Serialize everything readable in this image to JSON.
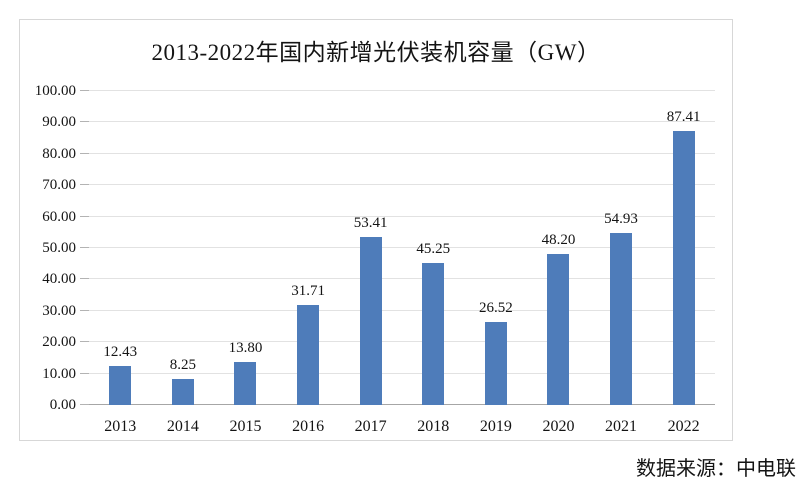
{
  "source_note": "数据来源：中电联",
  "colors": {
    "bar": "#4e7cba",
    "gridline": "#e2e2e2",
    "axis_line": "#a6a6a6",
    "frame_border": "#d7d7d7",
    "text": "#141414",
    "background": "#ffffff"
  },
  "chart_data": {
    "type": "bar",
    "title": "2013-2022年国内新增光伏装机容量（GW）",
    "categories": [
      "2013",
      "2014",
      "2015",
      "2016",
      "2017",
      "2018",
      "2019",
      "2020",
      "2021",
      "2022"
    ],
    "values": [
      12.43,
      8.25,
      13.8,
      31.71,
      53.41,
      45.25,
      26.52,
      48.2,
      54.93,
      87.41
    ],
    "data_labels": [
      "12.43",
      "8.25",
      "13.80",
      "31.71",
      "53.41",
      "45.25",
      "26.52",
      "48.20",
      "54.93",
      "87.41"
    ],
    "xlabel": "",
    "ylabel": "",
    "ylim": [
      0,
      100
    ],
    "y_tick_step": 10,
    "y_tick_labels": [
      "0.00",
      "10.00",
      "20.00",
      "30.00",
      "40.00",
      "50.00",
      "60.00",
      "70.00",
      "80.00",
      "90.00",
      "100.00"
    ],
    "grid": true,
    "legend": "none",
    "bar_color": "#4e7cba",
    "source": "数据来源：中电联"
  }
}
